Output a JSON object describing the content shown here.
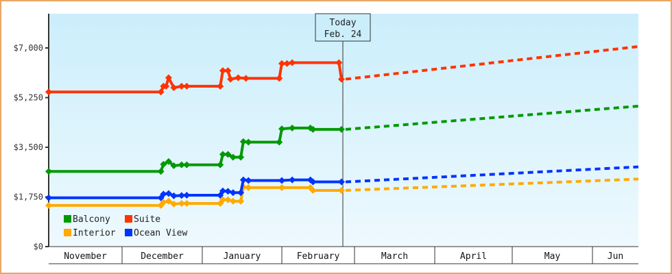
{
  "chart_data": {
    "type": "line",
    "title": "",
    "xlabel": "",
    "ylabel": "",
    "ylim": [
      0,
      8000
    ],
    "y_ticks": [
      "$0",
      "$1,750",
      "$3,500",
      "$5,250",
      "$7,000"
    ],
    "y_tick_values": [
      0,
      1750,
      3500,
      5250,
      7000
    ],
    "x_months": [
      "November",
      "December",
      "January",
      "February",
      "March",
      "April",
      "May",
      "Jun"
    ],
    "today_marker": {
      "line1": "Today",
      "line2": "Feb. 24"
    },
    "legend_position": "bottom-left inside plot",
    "grid": false,
    "series": [
      {
        "name": "Balcony",
        "color": "#009900",
        "historical": [
          {
            "date": "Nov 1",
            "value": 2650
          },
          {
            "date": "Dec 16",
            "value": 2650
          },
          {
            "date": "Dec 17",
            "value": 2900
          },
          {
            "date": "Dec 19",
            "value": 3000
          },
          {
            "date": "Dec 21",
            "value": 2850
          },
          {
            "date": "Dec 24",
            "value": 2880
          },
          {
            "date": "Dec 26",
            "value": 2880
          },
          {
            "date": "Jan 8",
            "value": 2880
          },
          {
            "date": "Jan 9",
            "value": 3250
          },
          {
            "date": "Jan 11",
            "value": 3250
          },
          {
            "date": "Jan 13",
            "value": 3150
          },
          {
            "date": "Jan 16",
            "value": 3150
          },
          {
            "date": "Jan 17",
            "value": 3700
          },
          {
            "date": "Jan 19",
            "value": 3680
          },
          {
            "date": "Jan 31",
            "value": 3680
          },
          {
            "date": "Feb 1",
            "value": 4150
          },
          {
            "date": "Feb 5",
            "value": 4180
          },
          {
            "date": "Feb 12",
            "value": 4180
          },
          {
            "date": "Feb 13",
            "value": 4130
          },
          {
            "date": "Feb 24",
            "value": 4130
          }
        ],
        "projected": [
          {
            "date": "Feb 24",
            "value": 4130
          },
          {
            "date": "Jun 10",
            "value": 4950
          }
        ]
      },
      {
        "name": "Suite",
        "color": "#ff3300",
        "historical": [
          {
            "date": "Nov 1",
            "value": 5450
          },
          {
            "date": "Dec 16",
            "value": 5450
          },
          {
            "date": "Dec 17",
            "value": 5650
          },
          {
            "date": "Dec 18",
            "value": 5650
          },
          {
            "date": "Dec 19",
            "value": 5950
          },
          {
            "date": "Dec 21",
            "value": 5600
          },
          {
            "date": "Dec 24",
            "value": 5650
          },
          {
            "date": "Dec 26",
            "value": 5650
          },
          {
            "date": "Jan 8",
            "value": 5650
          },
          {
            "date": "Jan 9",
            "value": 6200
          },
          {
            "date": "Jan 11",
            "value": 6200
          },
          {
            "date": "Jan 12",
            "value": 5900
          },
          {
            "date": "Jan 15",
            "value": 5950
          },
          {
            "date": "Jan 18",
            "value": 5930
          },
          {
            "date": "Jan 31",
            "value": 5930
          },
          {
            "date": "Feb 1",
            "value": 6450
          },
          {
            "date": "Feb 3",
            "value": 6450
          },
          {
            "date": "Feb 5",
            "value": 6480
          },
          {
            "date": "Feb 23",
            "value": 6480
          },
          {
            "date": "Feb 24",
            "value": 5900
          }
        ],
        "projected": [
          {
            "date": "Feb 24",
            "value": 5900
          },
          {
            "date": "Jun 10",
            "value": 7050
          }
        ]
      },
      {
        "name": "Interior",
        "color": "#ffaa00",
        "historical": [
          {
            "date": "Nov 1",
            "value": 1450
          },
          {
            "date": "Dec 16",
            "value": 1450
          },
          {
            "date": "Dec 17",
            "value": 1560
          },
          {
            "date": "Dec 19",
            "value": 1600
          },
          {
            "date": "Dec 21",
            "value": 1500
          },
          {
            "date": "Dec 24",
            "value": 1520
          },
          {
            "date": "Dec 26",
            "value": 1520
          },
          {
            "date": "Jan 8",
            "value": 1520
          },
          {
            "date": "Jan 9",
            "value": 1650
          },
          {
            "date": "Jan 11",
            "value": 1650
          },
          {
            "date": "Jan 13",
            "value": 1600
          },
          {
            "date": "Jan 16",
            "value": 1600
          },
          {
            "date": "Jan 17",
            "value": 2100
          },
          {
            "date": "Jan 19",
            "value": 2080
          },
          {
            "date": "Feb 1",
            "value": 2080
          },
          {
            "date": "Feb 12",
            "value": 2080
          },
          {
            "date": "Feb 13",
            "value": 1980
          },
          {
            "date": "Feb 24",
            "value": 1980
          }
        ],
        "projected": [
          {
            "date": "Feb 24",
            "value": 1980
          },
          {
            "date": "Jun 10",
            "value": 2380
          }
        ]
      },
      {
        "name": "Ocean View",
        "color": "#0033ff",
        "historical": [
          {
            "date": "Nov 1",
            "value": 1720
          },
          {
            "date": "Dec 16",
            "value": 1720
          },
          {
            "date": "Dec 17",
            "value": 1850
          },
          {
            "date": "Dec 19",
            "value": 1870
          },
          {
            "date": "Dec 21",
            "value": 1790
          },
          {
            "date": "Dec 24",
            "value": 1800
          },
          {
            "date": "Dec 26",
            "value": 1810
          },
          {
            "date": "Jan 8",
            "value": 1810
          },
          {
            "date": "Jan 9",
            "value": 1960
          },
          {
            "date": "Jan 11",
            "value": 1950
          },
          {
            "date": "Jan 13",
            "value": 1900
          },
          {
            "date": "Jan 16",
            "value": 1900
          },
          {
            "date": "Jan 17",
            "value": 2350
          },
          {
            "date": "Jan 19",
            "value": 2330
          },
          {
            "date": "Feb 1",
            "value": 2330
          },
          {
            "date": "Feb 5",
            "value": 2350
          },
          {
            "date": "Feb 12",
            "value": 2350
          },
          {
            "date": "Feb 13",
            "value": 2280
          },
          {
            "date": "Feb 24",
            "value": 2280
          }
        ],
        "projected": [
          {
            "date": "Feb 24",
            "value": 2280
          },
          {
            "date": "Jun 10",
            "value": 2810
          }
        ]
      }
    ]
  },
  "legend": {
    "items": [
      {
        "label": "Balcony",
        "color": "#009900"
      },
      {
        "label": "Suite",
        "color": "#ff3300"
      },
      {
        "label": "Interior",
        "color": "#ffaa00"
      },
      {
        "label": "Ocean View",
        "color": "#0033ff"
      }
    ]
  },
  "colors": {
    "frame_border": "#e8a765",
    "plot_bg_top": "#cbeefb",
    "plot_bg_bottom": "#eef9fe",
    "axis": "#333333"
  }
}
